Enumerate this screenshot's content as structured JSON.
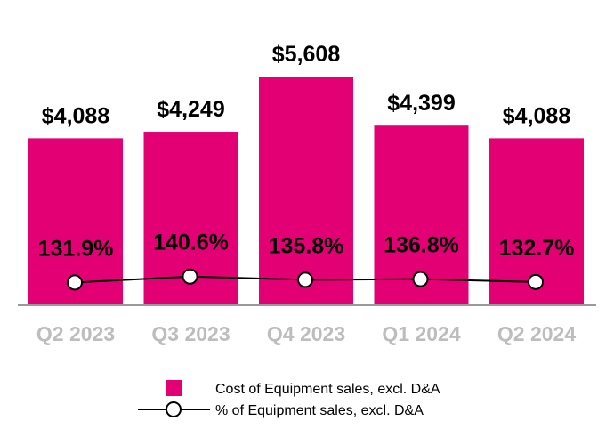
{
  "chart_data": {
    "type": "bar",
    "title": "",
    "xlabel": "",
    "ylabel": "",
    "categories": [
      "Q2 2023",
      "Q3 2023",
      "Q4 2023",
      "Q1 2024",
      "Q2 2024"
    ],
    "series": [
      {
        "name": "Cost of Equipment sales, excl. D&A",
        "kind": "bar",
        "values": [
          4088,
          4249,
          5608,
          4399,
          4088
        ],
        "labels": [
          "$4,088",
          "$4,249",
          "$5,608",
          "$4,399",
          "$4,088"
        ]
      },
      {
        "name": "% of Equipment sales, excl. D&A",
        "kind": "line",
        "values": [
          131.9,
          140.6,
          135.8,
          136.8,
          132.7
        ],
        "labels": [
          "131.9%",
          "140.6%",
          "135.8%",
          "136.8%",
          "132.7%"
        ]
      }
    ],
    "ylim_bar": [
      0,
      5608
    ],
    "ylim_line": [
      100,
      200
    ],
    "legend_position": "bottom-center",
    "colors": {
      "bar": "#e20074",
      "line": "#000000",
      "marker_fill": "#ffffff",
      "tick": "#bdbdbd",
      "axis": "#999999"
    }
  }
}
